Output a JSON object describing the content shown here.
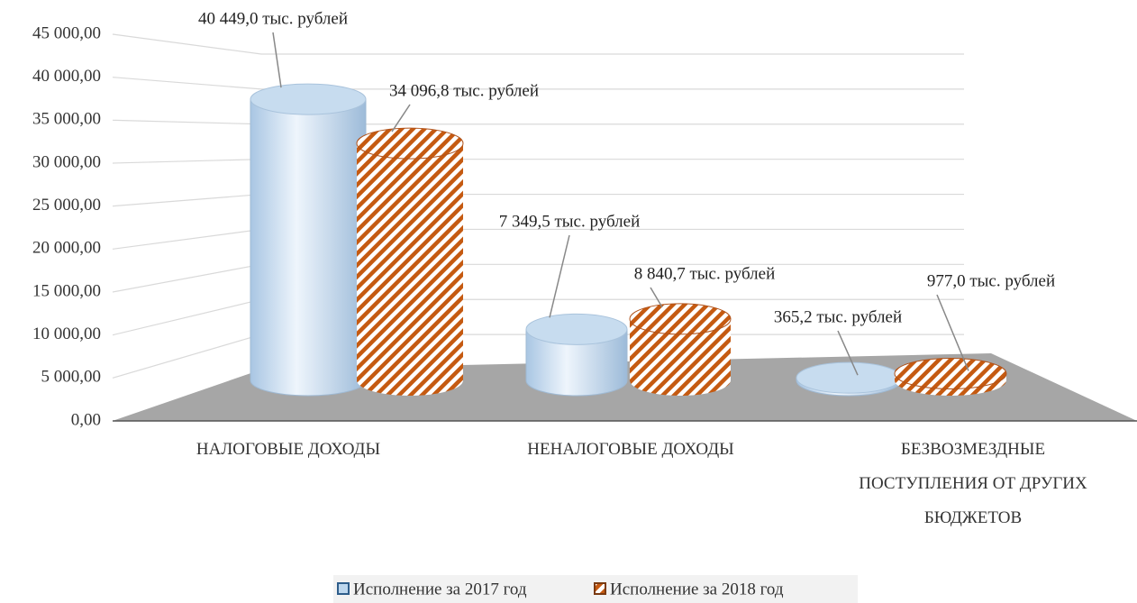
{
  "chart_data": {
    "type": "bar3d",
    "categories": [
      "НАЛОГОВЫЕ ДОХОДЫ",
      "НЕНАЛОГОВЫЕ ДОХОДЫ",
      "БЕЗВОЗМЕЗДНЫЕ ПОСТУПЛЕНИЯ ОТ ДРУГИХ БЮДЖЕТОВ"
    ],
    "series": [
      {
        "name": "Исполнение за 2017 год",
        "color": "#bdd7ee",
        "values": [
          40449.0,
          7349.5,
          365.2
        ],
        "value_labels": [
          "40 449,0 тыс. рублей",
          "7 349,5 тыс. рублей",
          "365,2 тыс. рублей"
        ]
      },
      {
        "name": "Исполнение за 2018 год",
        "color": "#c55a11",
        "values": [
          34096.8,
          8840.7,
          977.0
        ],
        "value_labels": [
          "34 096,8 тыс. рублей",
          "8 840,7 тыс. рублей",
          "977,0 тыс. рублей"
        ]
      }
    ],
    "ylim": [
      0,
      45000
    ],
    "yticks": [
      {
        "value": 0,
        "label": "0,00"
      },
      {
        "value": 5000,
        "label": "5 000,00"
      },
      {
        "value": 10000,
        "label": "10 000,00"
      },
      {
        "value": 15000,
        "label": "15 000,00"
      },
      {
        "value": 20000,
        "label": "20 000,00"
      },
      {
        "value": 25000,
        "label": "25 000,00"
      },
      {
        "value": 30000,
        "label": "30 000,00"
      },
      {
        "value": 35000,
        "label": "35 000,00"
      },
      {
        "value": 40000,
        "label": "40 000,00"
      },
      {
        "value": 45000,
        "label": "45 000,00"
      }
    ],
    "grid": true,
    "legend": "bottom"
  }
}
